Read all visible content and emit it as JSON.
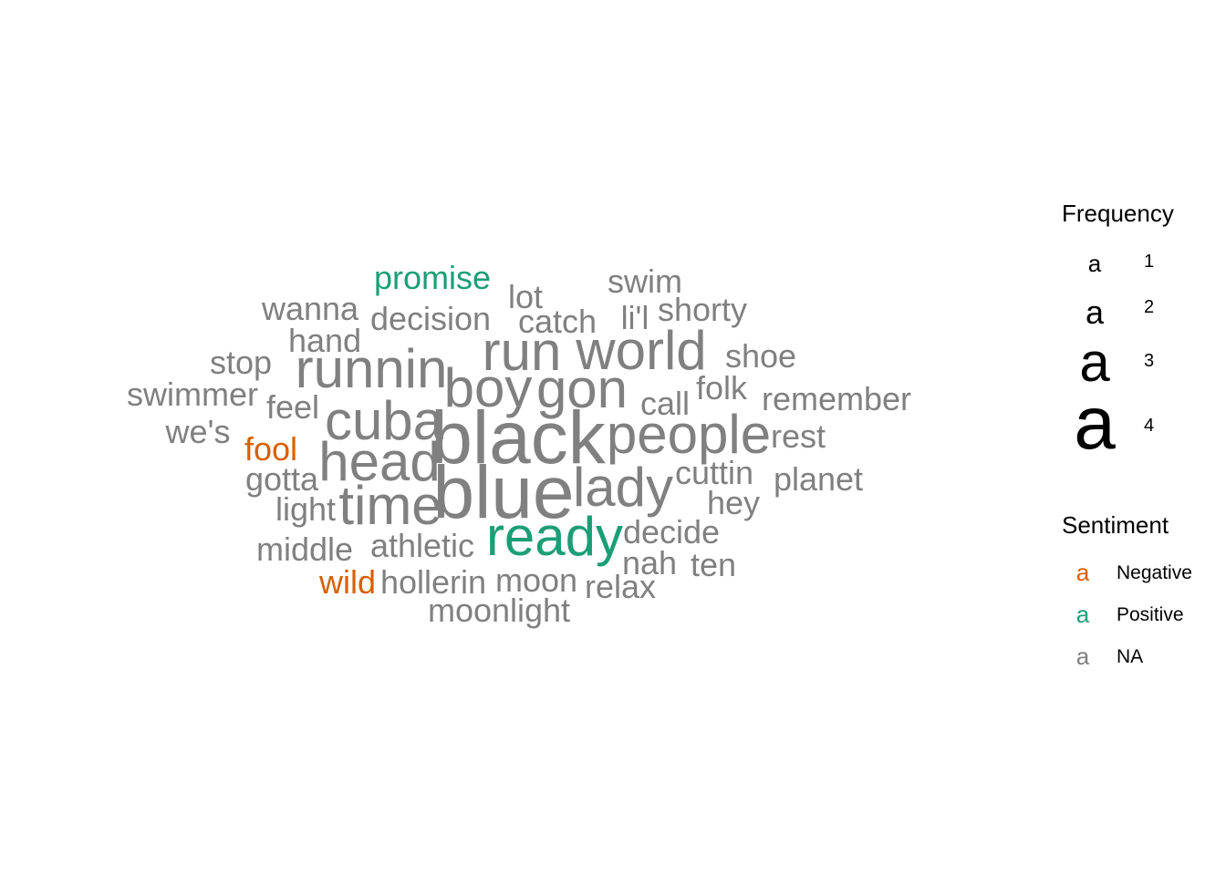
{
  "chart_data": {
    "type": "wordcloud",
    "legends": {
      "frequency": {
        "title": "Frequency",
        "glyph": "a",
        "levels": [
          1,
          2,
          3,
          4
        ]
      },
      "sentiment": {
        "title": "Sentiment",
        "glyph": "a",
        "items": [
          {
            "label": "Negative",
            "color": "#D95F02"
          },
          {
            "label": "Positive",
            "color": "#1B9E77"
          },
          {
            "label": "NA",
            "color": "#808080"
          }
        ]
      }
    },
    "words": [
      {
        "word": "black",
        "frequency": 4,
        "sentiment": "NA"
      },
      {
        "word": "blue",
        "frequency": 4,
        "sentiment": "NA"
      },
      {
        "word": "gon",
        "frequency": 3,
        "sentiment": "NA"
      },
      {
        "word": "people",
        "frequency": 3,
        "sentiment": "NA"
      },
      {
        "word": "lady",
        "frequency": 3,
        "sentiment": "NA"
      },
      {
        "word": "ready",
        "frequency": 3,
        "sentiment": "Positive"
      },
      {
        "word": "time",
        "frequency": 3,
        "sentiment": "NA"
      },
      {
        "word": "head",
        "frequency": 3,
        "sentiment": "NA"
      },
      {
        "word": "cuba",
        "frequency": 3,
        "sentiment": "NA"
      },
      {
        "word": "boy",
        "frequency": 3,
        "sentiment": "NA"
      },
      {
        "word": "runnin",
        "frequency": 3,
        "sentiment": "NA"
      },
      {
        "word": "run",
        "frequency": 3,
        "sentiment": "NA"
      },
      {
        "word": "world",
        "frequency": 3,
        "sentiment": "NA"
      },
      {
        "word": "promise",
        "frequency": 2,
        "sentiment": "Positive"
      },
      {
        "word": "swim",
        "frequency": 2,
        "sentiment": "NA"
      },
      {
        "word": "lot",
        "frequency": 2,
        "sentiment": "NA"
      },
      {
        "word": "wanna",
        "frequency": 2,
        "sentiment": "NA"
      },
      {
        "word": "decision",
        "frequency": 2,
        "sentiment": "NA"
      },
      {
        "word": "catch",
        "frequency": 2,
        "sentiment": "NA"
      },
      {
        "word": "li'l",
        "frequency": 2,
        "sentiment": "NA"
      },
      {
        "word": "shorty",
        "frequency": 2,
        "sentiment": "NA"
      },
      {
        "word": "hand",
        "frequency": 2,
        "sentiment": "NA"
      },
      {
        "word": "stop",
        "frequency": 2,
        "sentiment": "NA"
      },
      {
        "word": "shoe",
        "frequency": 2,
        "sentiment": "NA"
      },
      {
        "word": "swimmer",
        "frequency": 2,
        "sentiment": "NA"
      },
      {
        "word": "feel",
        "frequency": 2,
        "sentiment": "NA"
      },
      {
        "word": "call",
        "frequency": 2,
        "sentiment": "NA"
      },
      {
        "word": "folk",
        "frequency": 2,
        "sentiment": "NA"
      },
      {
        "word": "remember",
        "frequency": 2,
        "sentiment": "NA"
      },
      {
        "word": "we's",
        "frequency": 2,
        "sentiment": "NA"
      },
      {
        "word": "fool",
        "frequency": 2,
        "sentiment": "Negative"
      },
      {
        "word": "rest",
        "frequency": 2,
        "sentiment": "NA"
      },
      {
        "word": "gotta",
        "frequency": 2,
        "sentiment": "NA"
      },
      {
        "word": "cuttin",
        "frequency": 2,
        "sentiment": "NA"
      },
      {
        "word": "planet",
        "frequency": 2,
        "sentiment": "NA"
      },
      {
        "word": "light",
        "frequency": 2,
        "sentiment": "NA"
      },
      {
        "word": "hey",
        "frequency": 2,
        "sentiment": "NA"
      },
      {
        "word": "decide",
        "frequency": 2,
        "sentiment": "NA"
      },
      {
        "word": "middle",
        "frequency": 2,
        "sentiment": "NA"
      },
      {
        "word": "athletic",
        "frequency": 2,
        "sentiment": "NA"
      },
      {
        "word": "nah",
        "frequency": 2,
        "sentiment": "NA"
      },
      {
        "word": "ten",
        "frequency": 2,
        "sentiment": "NA"
      },
      {
        "word": "wild",
        "frequency": 2,
        "sentiment": "Negative"
      },
      {
        "word": "hollerin",
        "frequency": 2,
        "sentiment": "NA"
      },
      {
        "word": "moon",
        "frequency": 2,
        "sentiment": "NA"
      },
      {
        "word": "relax",
        "frequency": 2,
        "sentiment": "NA"
      },
      {
        "word": "moonlight",
        "frequency": 2,
        "sentiment": "NA"
      }
    ]
  }
}
